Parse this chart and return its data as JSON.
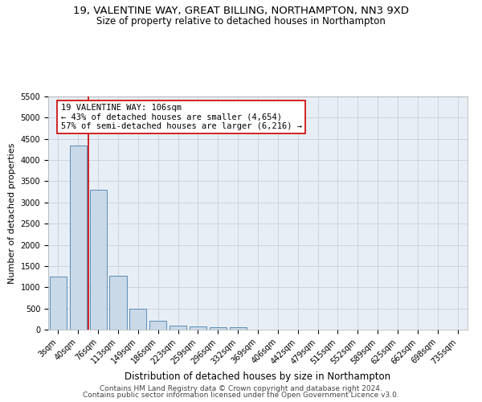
{
  "title1": "19, VALENTINE WAY, GREAT BILLING, NORTHAMPTON, NN3 9XD",
  "title2": "Size of property relative to detached houses in Northampton",
  "xlabel": "Distribution of detached houses by size in Northampton",
  "ylabel": "Number of detached properties",
  "categories": [
    "3sqm",
    "40sqm",
    "76sqm",
    "113sqm",
    "149sqm",
    "186sqm",
    "223sqm",
    "259sqm",
    "296sqm",
    "332sqm",
    "369sqm",
    "406sqm",
    "442sqm",
    "479sqm",
    "515sqm",
    "552sqm",
    "589sqm",
    "625sqm",
    "662sqm",
    "698sqm",
    "735sqm"
  ],
  "values": [
    1250,
    4350,
    3300,
    1280,
    490,
    210,
    90,
    70,
    55,
    55,
    0,
    0,
    0,
    0,
    0,
    0,
    0,
    0,
    0,
    0,
    0
  ],
  "bar_color": "#c9d9e8",
  "bar_edgecolor": "#5b8db8",
  "vline_x_index": 1.5,
  "vline_color": "#cc0000",
  "ylim": [
    0,
    5500
  ],
  "yticks": [
    0,
    500,
    1000,
    1500,
    2000,
    2500,
    3000,
    3500,
    4000,
    4500,
    5000,
    5500
  ],
  "grid_color": "#c8d0de",
  "bg_color": "#e8eef5",
  "annotation_line1": "19 VALENTINE WAY: 106sqm",
  "annotation_line2": "← 43% of detached houses are smaller (4,654)",
  "annotation_line3": "57% of semi-detached houses are larger (6,216) →",
  "annotation_box_color": "#cc0000",
  "footer1": "Contains HM Land Registry data © Crown copyright and database right 2024.",
  "footer2": "Contains public sector information licensed under the Open Government Licence v3.0.",
  "title1_fontsize": 9.5,
  "title2_fontsize": 8.5,
  "xlabel_fontsize": 8.5,
  "ylabel_fontsize": 8,
  "tick_fontsize": 7,
  "annotation_fontsize": 7.5,
  "footer_fontsize": 6.5
}
